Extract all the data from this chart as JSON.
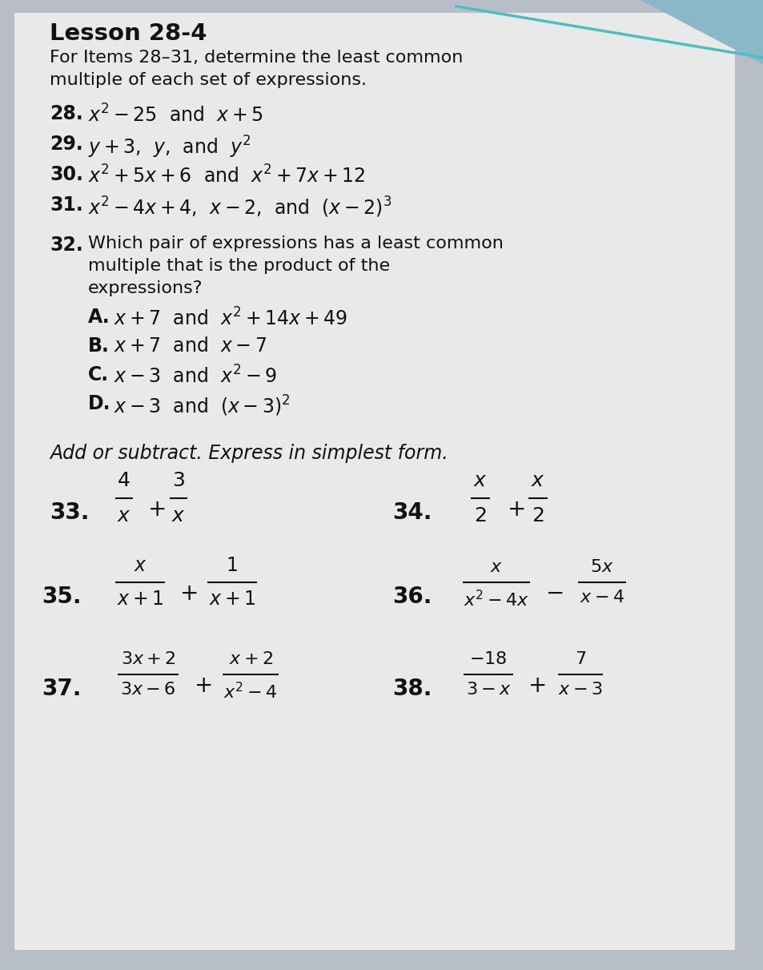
{
  "title": "Lesson 28-4",
  "bg_color": "#b8bec7",
  "paper_color": "#e9e9e9",
  "text_color": "#111111",
  "figsize": [
    9.54,
    12.11
  ],
  "dpi": 100,
  "teal_line": [
    [
      570,
      954
    ],
    [
      8,
      72
    ]
  ],
  "items": {
    "28": "x^2 - 25 \\text{ and } x + 5",
    "29": "y + 3,\\, y,\\text{ and } y^2",
    "30": "x^2 + 5x + 6 \\text{ and } x^2 + 7x + 12",
    "31": "x^2 - 4x + 4,\\, x - 2,\\text{ and }(x-2)^3"
  }
}
